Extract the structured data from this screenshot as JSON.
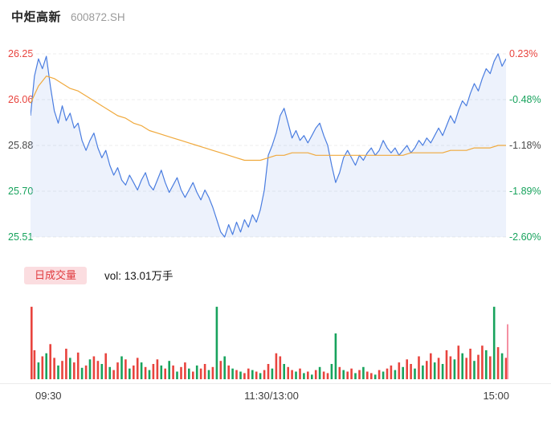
{
  "header": {
    "title": "中炬高新",
    "code": "600872.SH"
  },
  "price_axis": {
    "left": [
      {
        "text": "26.25",
        "color": "#e8443e"
      },
      {
        "text": "26.06",
        "color": "#e8443e"
      },
      {
        "text": "25.88",
        "color": "#4a4a4a"
      },
      {
        "text": "25.70",
        "color": "#18a35d"
      },
      {
        "text": "25.51",
        "color": "#18a35d"
      }
    ],
    "right": [
      {
        "text": "0.23%",
        "color": "#e8443e"
      },
      {
        "text": "-0.48%",
        "color": "#18a35d"
      },
      {
        "text": "-1.18%",
        "color": "#4a4a4a"
      },
      {
        "text": "-1.89%",
        "color": "#18a35d"
      },
      {
        "text": "-2.60%",
        "color": "#18a35d"
      }
    ]
  },
  "volume_header": {
    "tag": "日成交量",
    "vol_label": "vol: 13.01万手"
  },
  "time_axis": {
    "open": "09:30",
    "mid": "11:30/13:00",
    "close": "15:00"
  },
  "colors": {
    "up": "#e8443e",
    "down": "#18a35d",
    "price_line": "#4a7de0",
    "price_fill": "rgba(74,125,224,0.10)",
    "avg_line": "#f0a93c",
    "grid": "#ededed",
    "marker": "#f590a2"
  },
  "chart_data": {
    "type": "line",
    "title": "中炬高新 600872.SH 分时走势",
    "x_range_minutes": [
      0,
      240
    ],
    "x_labels": [
      "09:30",
      "11:30/13:00",
      "15:00"
    ],
    "price_ylim": [
      25.51,
      26.25
    ],
    "pct_ylim": [
      -2.6,
      0.23
    ],
    "prev_close": 26.19,
    "grid": "dashed-horizontal",
    "series": [
      {
        "name": "price",
        "color": "#4a7de0",
        "step_minutes": 2,
        "values": [
          26.0,
          26.16,
          26.23,
          26.19,
          26.24,
          26.12,
          26.02,
          25.97,
          26.04,
          25.98,
          26.01,
          25.95,
          25.97,
          25.9,
          25.86,
          25.9,
          25.93,
          25.87,
          25.83,
          25.86,
          25.8,
          25.76,
          25.79,
          25.74,
          25.72,
          25.76,
          25.73,
          25.7,
          25.74,
          25.77,
          25.72,
          25.7,
          25.74,
          25.78,
          25.73,
          25.69,
          25.72,
          25.75,
          25.7,
          25.67,
          25.7,
          25.73,
          25.69,
          25.66,
          25.7,
          25.67,
          25.63,
          25.58,
          25.53,
          25.51,
          25.56,
          25.52,
          25.57,
          25.53,
          25.58,
          25.55,
          25.6,
          25.57,
          25.62,
          25.7,
          25.84,
          25.88,
          25.93,
          26.0,
          26.03,
          25.97,
          25.91,
          25.94,
          25.9,
          25.92,
          25.89,
          25.92,
          25.95,
          25.97,
          25.92,
          25.88,
          25.8,
          25.73,
          25.77,
          25.83,
          25.86,
          25.83,
          25.8,
          25.84,
          25.82,
          25.85,
          25.87,
          25.84,
          25.86,
          25.9,
          25.87,
          25.85,
          25.87,
          25.84,
          25.86,
          25.88,
          25.85,
          25.87,
          25.9,
          25.88,
          25.91,
          25.89,
          25.92,
          25.95,
          25.92,
          25.96,
          26.0,
          25.97,
          26.02,
          26.06,
          26.04,
          26.09,
          26.13,
          26.1,
          26.15,
          26.19,
          26.17,
          26.22,
          26.25,
          26.2,
          26.23
        ]
      },
      {
        "name": "avg_price",
        "color": "#f0a93c",
        "step_minutes": 4,
        "values": [
          26.05,
          26.12,
          26.16,
          26.15,
          26.13,
          26.11,
          26.1,
          26.08,
          26.06,
          26.04,
          26.02,
          26.0,
          25.99,
          25.97,
          25.96,
          25.94,
          25.93,
          25.92,
          25.91,
          25.9,
          25.89,
          25.88,
          25.87,
          25.86,
          25.85,
          25.84,
          25.83,
          25.82,
          25.82,
          25.82,
          25.83,
          25.84,
          25.84,
          25.85,
          25.85,
          25.85,
          25.84,
          25.84,
          25.84,
          25.84,
          25.84,
          25.84,
          25.84,
          25.84,
          25.84,
          25.84,
          25.84,
          25.84,
          25.85,
          25.85,
          25.85,
          25.85,
          25.85,
          25.86,
          25.86,
          25.86,
          25.87,
          25.87,
          25.87,
          25.88,
          25.88
        ]
      }
    ],
    "volume": {
      "label": "vol: 13.01万手",
      "total": "13.01万手",
      "step_minutes": 2,
      "unit": "pct_of_max_signed(pos=up/red,neg=down/green)",
      "up_color": "#e8443e",
      "down_color": "#18a35d",
      "bars": [
        95,
        38,
        -22,
        30,
        -34,
        46,
        28,
        -18,
        24,
        40,
        -28,
        22,
        35,
        -15,
        18,
        -26,
        30,
        24,
        -20,
        34,
        -16,
        12,
        22,
        -30,
        26,
        -14,
        18,
        28,
        -22,
        16,
        -12,
        20,
        26,
        -18,
        14,
        -24,
        18,
        -10,
        16,
        22,
        -14,
        10,
        -18,
        14,
        20,
        -12,
        16,
        -95,
        24,
        -30,
        18,
        -14,
        12,
        -10,
        8,
        14,
        -12,
        10,
        -8,
        12,
        20,
        -14,
        34,
        30,
        -20,
        16,
        12,
        -10,
        14,
        -8,
        10,
        -6,
        12,
        -16,
        10,
        8,
        -20,
        -60,
        16,
        -12,
        10,
        14,
        -8,
        12,
        -16,
        10,
        8,
        -6,
        12,
        -10,
        14,
        18,
        -12,
        22,
        -16,
        26,
        20,
        -14,
        30,
        -18,
        24,
        34,
        -22,
        28,
        -20,
        38,
        30,
        -26,
        44,
        -34,
        28,
        40,
        -24,
        32,
        44,
        -38,
        30,
        -95,
        42,
        -34,
        28
      ]
    },
    "current_marker": {
      "color": "#f590a2",
      "height_pct": 72
    }
  }
}
